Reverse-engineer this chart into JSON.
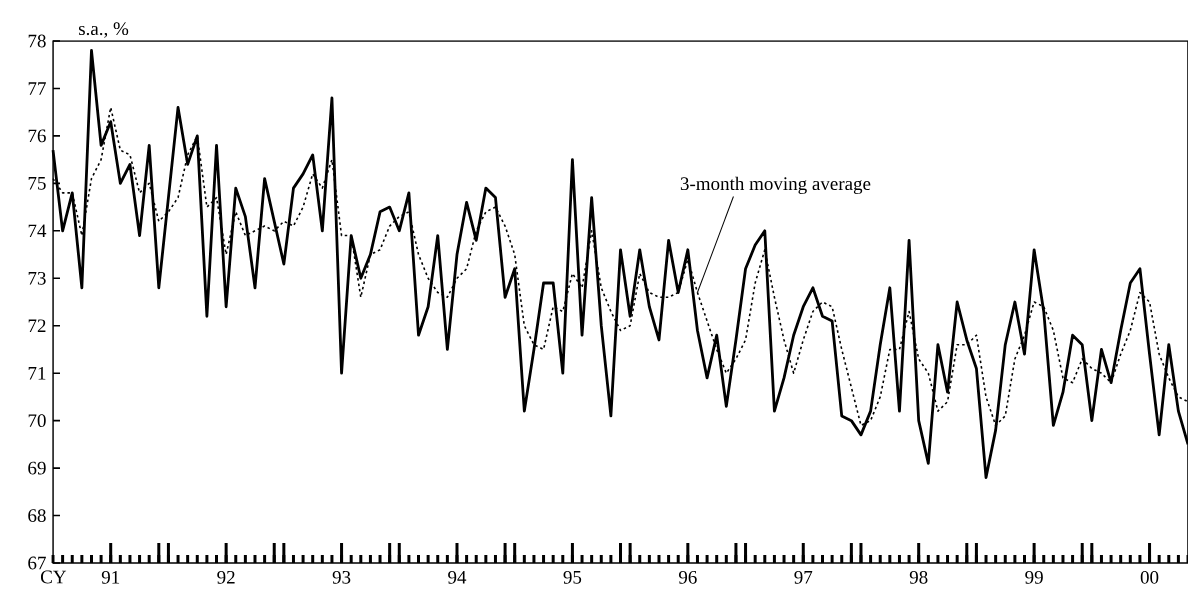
{
  "chart_data": {
    "type": "line",
    "ylabel": "s.a., %",
    "xlabel": "CY",
    "x": [
      "1991-01",
      "1991-02",
      "1991-03",
      "1991-04",
      "1991-05",
      "1991-06",
      "1991-07",
      "1991-08",
      "1991-09",
      "1991-10",
      "1991-11",
      "1991-12",
      "1992-01",
      "1992-02",
      "1992-03",
      "1992-04",
      "1992-05",
      "1992-06",
      "1992-07",
      "1992-08",
      "1992-09",
      "1992-10",
      "1992-11",
      "1992-12",
      "1993-01",
      "1993-02",
      "1993-03",
      "1993-04",
      "1993-05",
      "1993-06",
      "1993-07",
      "1993-08",
      "1993-09",
      "1993-10",
      "1993-11",
      "1993-12",
      "1994-01",
      "1994-02",
      "1994-03",
      "1994-04",
      "1994-05",
      "1994-06",
      "1994-07",
      "1994-08",
      "1994-09",
      "1994-10",
      "1994-11",
      "1994-12",
      "1995-01",
      "1995-02",
      "1995-03",
      "1995-04",
      "1995-05",
      "1995-06",
      "1995-07",
      "1995-08",
      "1995-09",
      "1995-10",
      "1995-11",
      "1995-12",
      "1996-01",
      "1996-02",
      "1996-03",
      "1996-04",
      "1996-05",
      "1996-06",
      "1996-07",
      "1996-08",
      "1996-09",
      "1996-10",
      "1996-11",
      "1996-12",
      "1997-01",
      "1997-02",
      "1997-03",
      "1997-04",
      "1997-05",
      "1997-06",
      "1997-07",
      "1997-08",
      "1997-09",
      "1997-10",
      "1997-11",
      "1997-12",
      "1998-01",
      "1998-02",
      "1998-03",
      "1998-04",
      "1998-05",
      "1998-06",
      "1998-07",
      "1998-08",
      "1998-09",
      "1998-10",
      "1998-11",
      "1998-12",
      "1999-01",
      "1999-02",
      "1999-03",
      "1999-04",
      "1999-05",
      "1999-06",
      "1999-07",
      "1999-08",
      "1999-09",
      "1999-10",
      "1999-11",
      "1999-12",
      "2000-01",
      "2000-02",
      "2000-03",
      "2000-04",
      "2000-05",
      "2000-06",
      "2000-07",
      "2000-08",
      "2000-09",
      "2000-10",
      "2000-11"
    ],
    "xlim": [
      "1991-01",
      "2000-11"
    ],
    "xticks": [
      {
        "value": "1991-07",
        "label": "91"
      },
      {
        "value": "1992-07",
        "label": "92"
      },
      {
        "value": "1993-07",
        "label": "93"
      },
      {
        "value": "1994-07",
        "label": "94"
      },
      {
        "value": "1995-07",
        "label": "95"
      },
      {
        "value": "1996-07",
        "label": "96"
      },
      {
        "value": "1997-07",
        "label": "97"
      },
      {
        "value": "1998-07",
        "label": "98"
      },
      {
        "value": "1999-07",
        "label": "99"
      },
      {
        "value": "2000-07",
        "label": "00"
      },
      {
        "value": "1991-12",
        "label": null
      },
      {
        "value": "1992-01",
        "label": null
      },
      {
        "value": "1992-12",
        "label": null
      },
      {
        "value": "1993-01",
        "label": null
      },
      {
        "value": "1993-12",
        "label": null
      },
      {
        "value": "1994-01",
        "label": null
      },
      {
        "value": "1994-12",
        "label": null
      },
      {
        "value": "1995-01",
        "label": null
      },
      {
        "value": "1995-12",
        "label": null
      },
      {
        "value": "1996-01",
        "label": null
      },
      {
        "value": "1996-12",
        "label": null
      },
      {
        "value": "1997-01",
        "label": null
      },
      {
        "value": "1997-12",
        "label": null
      },
      {
        "value": "1998-01",
        "label": null
      },
      {
        "value": "1998-12",
        "label": null
      },
      {
        "value": "1999-01",
        "label": null
      },
      {
        "value": "1999-12",
        "label": null
      },
      {
        "value": "2000-01",
        "label": null
      }
    ],
    "ylim": [
      67,
      78
    ],
    "yticks": [
      67,
      68,
      69,
      70,
      71,
      72,
      73,
      74,
      75,
      76,
      77,
      78
    ],
    "series": [
      {
        "color": "#000000",
        "line_style": "solid",
        "values": [
          75.7,
          74.0,
          74.8,
          72.8,
          77.8,
          75.8,
          76.3,
          75.0,
          75.4,
          73.9,
          75.8,
          72.8,
          74.7,
          76.6,
          75.4,
          76.0,
          72.2,
          75.8,
          72.4,
          74.9,
          74.3,
          72.8,
          75.1,
          74.2,
          73.3,
          74.9,
          75.2,
          75.6,
          74.0,
          76.8,
          71.0,
          73.9,
          73.0,
          73.5,
          74.4,
          74.5,
          74.0,
          74.8,
          71.8,
          72.4,
          73.9,
          71.5,
          73.5,
          74.6,
          73.8,
          74.9,
          74.7,
          72.6,
          73.2,
          70.2,
          71.5,
          72.9,
          72.9,
          71.0,
          75.5,
          71.8,
          74.7,
          72.0,
          70.1,
          73.6,
          72.2,
          73.6,
          72.4,
          71.7,
          73.8,
          72.7,
          73.6,
          71.9,
          70.9,
          71.8,
          70.3,
          71.7,
          73.2,
          73.7,
          74.0,
          70.2,
          70.9,
          71.8,
          72.4,
          72.8,
          72.2,
          72.1,
          70.1,
          70.0,
          69.7,
          70.2,
          71.6,
          72.8,
          70.2,
          73.8,
          70.0,
          69.1,
          71.6,
          70.6,
          72.5,
          71.7,
          71.1,
          68.8,
          69.8,
          71.6,
          72.5,
          71.4,
          73.6,
          72.3,
          69.9,
          70.6,
          71.8,
          71.6,
          70.0,
          71.5,
          70.8,
          71.9,
          72.9,
          73.2,
          71.4,
          69.7,
          71.6,
          70.2,
          69.5
        ]
      },
      {
        "name": "3-month moving average",
        "color": "#000000",
        "line_style": "dotted",
        "values": [
          75.1,
          74.8,
          74.8,
          73.9,
          75.1,
          75.5,
          76.6,
          75.7,
          75.6,
          74.8,
          75.0,
          74.2,
          74.4,
          74.7,
          75.6,
          76.0,
          74.5,
          74.7,
          73.5,
          74.4,
          73.9,
          74.0,
          74.1,
          74.0,
          74.2,
          74.1,
          74.5,
          75.2,
          74.9,
          75.5,
          73.9,
          73.9,
          72.6,
          73.5,
          73.6,
          74.1,
          74.3,
          74.4,
          73.5,
          73.0,
          72.7,
          72.6,
          73.0,
          73.2,
          74.0,
          74.4,
          74.5,
          74.1,
          73.5,
          72.0,
          71.6,
          71.5,
          72.4,
          72.3,
          73.1,
          72.8,
          74.0,
          72.8,
          72.3,
          71.9,
          72.0,
          73.1,
          72.7,
          72.6,
          72.6,
          72.7,
          73.4,
          72.7,
          72.1,
          71.5,
          71.0,
          71.3,
          71.7,
          72.9,
          73.6,
          72.6,
          71.7,
          71.0,
          71.7,
          72.3,
          72.5,
          72.4,
          71.5,
          70.7,
          69.9,
          70.0,
          70.5,
          71.5,
          71.5,
          72.3,
          71.3,
          71.0,
          70.2,
          70.4,
          71.6,
          71.6,
          71.8,
          70.5,
          69.9,
          70.1,
          71.3,
          71.8,
          72.5,
          72.4,
          71.9,
          70.9,
          70.8,
          71.3,
          71.1,
          71.0,
          70.8,
          71.4,
          71.9,
          72.7,
          72.5,
          71.4,
          70.9,
          70.5,
          70.4
        ]
      }
    ]
  }
}
